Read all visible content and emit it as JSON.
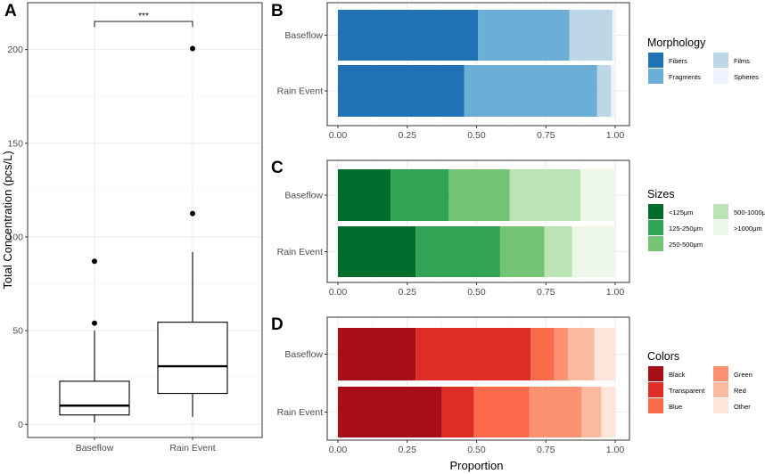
{
  "chart_data": [
    {
      "panel": "A",
      "type": "box",
      "categories": [
        "Baseflow",
        "Rain Event"
      ],
      "ylabel": "Total Concentration (pcs/L)",
      "ylim": [
        -7,
        225
      ],
      "yticks": [
        0,
        50,
        100,
        150,
        200
      ],
      "boxes": [
        {
          "name": "Baseflow",
          "q1": 5,
          "median": 10,
          "q3": 23,
          "whisker_low": 1,
          "whisker_high": 50,
          "outliers": [
            54,
            87
          ]
        },
        {
          "name": "Rain Event",
          "q1": 16.5,
          "median": 31,
          "q3": 54.5,
          "whisker_low": 4,
          "whisker_high": 92,
          "outliers": [
            112.5,
            200.5
          ]
        }
      ],
      "significance": "***"
    },
    {
      "panel": "B",
      "type": "stacked-horizontal-bar",
      "categories": [
        "Baseflow",
        "Rain Event"
      ],
      "xlim": [
        0,
        1
      ],
      "xticks": [
        "0.00",
        "0.25",
        "0.50",
        "0.75",
        "1.00"
      ],
      "legend_title": "Morphology",
      "series": [
        {
          "name": "Fibers",
          "color": "#2171b5",
          "values": [
            0.505,
            0.455
          ]
        },
        {
          "name": "Fragments",
          "color": "#6baed6",
          "values": [
            0.33,
            0.48
          ]
        },
        {
          "name": "Films",
          "color": "#bdd7e7",
          "values": [
            0.155,
            0.05
          ]
        },
        {
          "name": "Spheres",
          "color": "#eff3ff",
          "values": [
            0.01,
            0.015
          ]
        }
      ]
    },
    {
      "panel": "C",
      "type": "stacked-horizontal-bar",
      "categories": [
        "Baseflow",
        "Rain Event"
      ],
      "xlim": [
        0,
        1
      ],
      "xticks": [
        "0.00",
        "0.25",
        "0.50",
        "0.75",
        "1.00"
      ],
      "legend_title": "Sizes",
      "series": [
        {
          "name": "<125μm",
          "color": "#006d2c",
          "values": [
            0.19,
            0.28
          ]
        },
        {
          "name": "125-250μm",
          "color": "#31a354",
          "values": [
            0.21,
            0.305
          ]
        },
        {
          "name": "250-500μm",
          "color": "#74c476",
          "values": [
            0.22,
            0.16
          ]
        },
        {
          "name": "500-1000μm",
          "color": "#bae4b3",
          "values": [
            0.255,
            0.1
          ]
        },
        {
          "name": ">1000μm",
          "color": "#edf8e9",
          "values": [
            0.125,
            0.155
          ]
        }
      ]
    },
    {
      "panel": "D",
      "type": "stacked-horizontal-bar",
      "categories": [
        "Baseflow",
        "Rain Event"
      ],
      "xlim": [
        0,
        1
      ],
      "xticks": [
        "0.00",
        "0.25",
        "0.50",
        "0.75",
        "1.00"
      ],
      "xlabel": "Proportion",
      "legend_title": "Colors",
      "series": [
        {
          "name": "Black",
          "color": "#a50f15",
          "values": [
            0.28,
            0.375
          ]
        },
        {
          "name": "Transparent",
          "color": "#de2d26",
          "values": [
            0.415,
            0.115
          ]
        },
        {
          "name": "Blue",
          "color": "#fb6a4a",
          "values": [
            0.085,
            0.2
          ]
        },
        {
          "name": "Green",
          "color": "#fc9272",
          "values": [
            0.05,
            0.19
          ]
        },
        {
          "name": "Red",
          "color": "#fcbba1",
          "values": [
            0.095,
            0.07
          ]
        },
        {
          "name": "Other",
          "color": "#fee5d9",
          "values": [
            0.075,
            0.05
          ]
        }
      ]
    }
  ]
}
